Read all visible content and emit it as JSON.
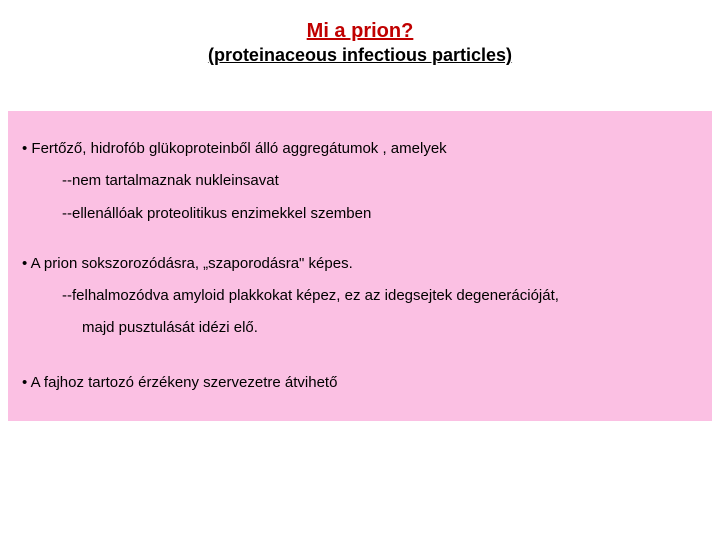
{
  "colors": {
    "title_color": "#c00000",
    "text_color": "#000000",
    "box_bg": "#fbc0e3",
    "page_bg": "#ffffff"
  },
  "typography": {
    "title_fontsize": 20,
    "subtitle_fontsize": 18,
    "body_fontsize": 15,
    "font_family": "Arial"
  },
  "title": "Mi a prion?",
  "subtitle": "(proteinaceous infectious particles)",
  "lines": {
    "l1": "• Fertőző, hidrofób glükoproteinből álló aggregátumok , amelyek",
    "l2": "--nem tartalmaznak nukleinsavat",
    "l3": "--ellenállóak proteolitikus enzimekkel szemben",
    "l4": "• A prion sokszorozódásra, „szaporodásra\" képes.",
    "l5": "--felhalmozódva amyloid plakkokat képez, ez az idegsejtek degenerációját,",
    "l6": "majd pusztulását idézi elő.",
    "l7": "• A fajhoz tartozó érzékeny szervezetre átvihető"
  }
}
